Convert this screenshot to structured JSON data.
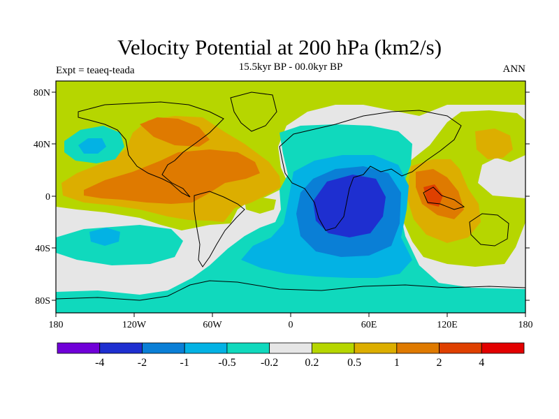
{
  "title": "Velocity Potential at 200 hPa (km2/s)",
  "subtitle": "15.5kyr BP - 00.0kyr BP",
  "experiment": "Expt = teaeq-teada",
  "season": "ANN",
  "lat_axis_labels": [
    "80N",
    "40N",
    "0",
    "40S",
    "80S"
  ],
  "lon_axis_labels": [
    "180",
    "120W",
    "60W",
    "0",
    "60E",
    "120E",
    "180"
  ],
  "colorbar": {
    "labels": [
      "-4",
      "-2",
      "-1",
      "-0.5",
      "-0.2",
      "0.2",
      "0.5",
      "1",
      "2",
      "4"
    ],
    "colors": [
      "#7000d8",
      "#1e2fd0",
      "#0a7fd6",
      "#03b2e4",
      "#10d9bd",
      "#e6e6e6",
      "#b6d600",
      "#dcae00",
      "#df7a00",
      "#df4000",
      "#e20000"
    ]
  },
  "field_colors": {
    "neutral": "#e6e6e6",
    "pos1": "#b6d600",
    "pos2": "#dcae00",
    "pos3": "#df7a00",
    "pos4": "#df4000",
    "neg1": "#10d9bd",
    "neg2": "#03b2e4",
    "neg3": "#0a7fd6",
    "neg4": "#1e2fd0",
    "coast": "#000000"
  }
}
